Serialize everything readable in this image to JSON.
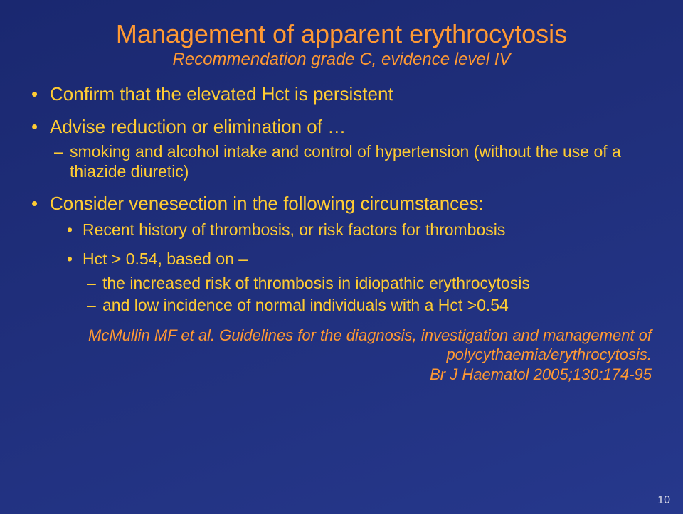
{
  "colors": {
    "background_gradient": [
      "#1a2870",
      "#1f2e7a",
      "#26388c"
    ],
    "title_color": "#ff9933",
    "body_color": "#ffcc33",
    "citation_color": "#ff9933",
    "pagenum_color": "#dcdce8"
  },
  "typography": {
    "font_family": "Comic Sans MS",
    "title_fontsize": 36,
    "subtitle_fontsize": 24,
    "bullet_fontsize": 26,
    "subbullet_fontsize": 23,
    "citation_fontsize": 22,
    "pagenum_fontsize": 16
  },
  "title": "Management of apparent erythrocytosis",
  "subtitle": "Recommendation grade C, evidence level IV",
  "bullets": {
    "b0": "Confirm that the elevated Hct is persistent",
    "b1": {
      "text": "Advise reduction or elimination of …",
      "sub0": "smoking and alcohol intake and control of hypertension (without the use of a thiazide diuretic)"
    },
    "b2": {
      "text": "Consider venesection in the following circumstances:",
      "s0": "Recent history of thrombosis, or risk factors for thrombosis",
      "s1": {
        "text": "Hct > 0.54, based on –",
        "d0": "the increased risk of thrombosis in idiopathic erythrocytosis",
        "d1": "and low incidence of normal individuals with a Hct >0.54"
      }
    }
  },
  "citation": {
    "line1": "McMullin MF et al. Guidelines for the diagnosis, investigation and management of polycythaemia/erythrocytosis.",
    "line2": "Br J Haematol 2005;130:174-95"
  },
  "page_number": "10"
}
